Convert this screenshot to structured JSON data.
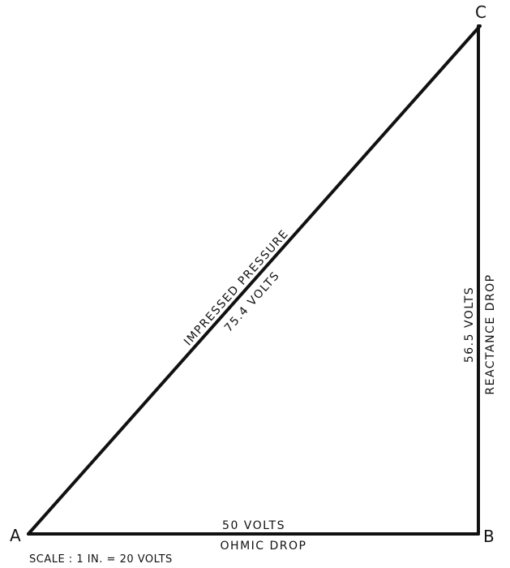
{
  "vertices": {
    "a": "A",
    "b": "B",
    "c": "C"
  },
  "hypotenuse": {
    "name": "IMPRESSED PRESSURE",
    "value": "75.4 VOLTS"
  },
  "base": {
    "value": "50 VOLTS",
    "name": "OHMIC DROP"
  },
  "vertical": {
    "value": "56.5 VOLTS",
    "name": "REACTANCE DROP"
  },
  "scale": "SCALE : 1 IN. = 20 VOLTS",
  "colors": {
    "line": "#111111",
    "background": "#ffffff"
  }
}
